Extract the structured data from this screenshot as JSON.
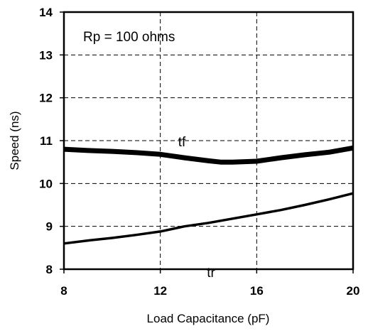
{
  "chart_data": {
    "type": "line",
    "xlabel": "Load Capacitance (pF)",
    "ylabel": "Speed (ns)",
    "xlim": [
      8,
      20
    ],
    "ylim": [
      8,
      14
    ],
    "x_ticks": [
      "8",
      "12",
      "16",
      "20"
    ],
    "y_ticks": [
      "8",
      "9",
      "10",
      "11",
      "12",
      "13",
      "14"
    ],
    "grid": true,
    "annotation": "Rp = 100 ohms",
    "series": [
      {
        "name": "tf",
        "x": [
          8,
          9,
          10,
          11,
          12,
          13,
          14,
          14.5,
          15,
          16,
          17,
          18,
          19,
          20
        ],
        "y": [
          10.8,
          10.77,
          10.75,
          10.72,
          10.68,
          10.6,
          10.53,
          10.5,
          10.5,
          10.52,
          10.6,
          10.67,
          10.73,
          10.83
        ],
        "color": "#000000"
      },
      {
        "name": "tr",
        "x": [
          8,
          9,
          10,
          11,
          12,
          13,
          14,
          15,
          16,
          17,
          18,
          19,
          20
        ],
        "y": [
          8.6,
          8.67,
          8.73,
          8.8,
          8.88,
          9.0,
          9.08,
          9.18,
          9.28,
          9.38,
          9.5,
          9.63,
          9.77
        ],
        "color": "#000000"
      }
    ]
  }
}
